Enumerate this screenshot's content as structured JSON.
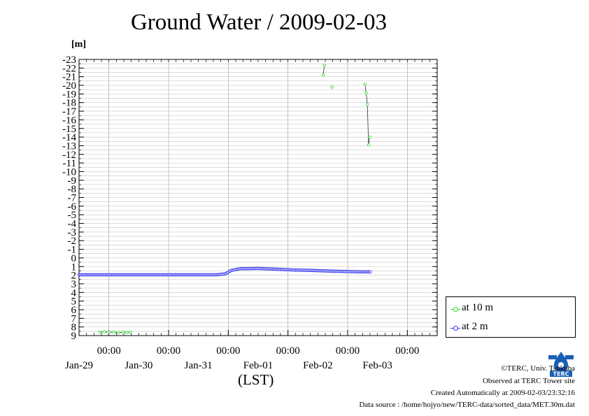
{
  "title": "Ground Water / 2009-02-03",
  "unit_label": "[m]",
  "axis_caption": "(LST)",
  "legend": [
    {
      "label": "at 10 m",
      "color": "#33dd33"
    },
    {
      "label": "at 2 m",
      "color": "#3333ee"
    }
  ],
  "footer": {
    "copyright": "©TERC, Univ. Tsukuba",
    "observed": "Observed at TERC Tower site",
    "created": "Created Automatically at 2009-02-03/23:32:16",
    "source": "Data source : /home/hojyo/new/TERC-data/sorted_data/MET.30m.dat"
  },
  "logo_text": "TERC",
  "chart_data": {
    "type": "line",
    "title": "Ground Water / 2009-02-03",
    "ylabel": "[m]",
    "xlabel": "(LST)",
    "y_inverted": true,
    "ylim": [
      -23,
      9
    ],
    "xlim": [
      0,
      6
    ],
    "x_unit": "days from Jan-28 12:00",
    "grid": true,
    "legend_position": "bottom-right outside",
    "y_ticks": [
      "-23",
      "-22",
      "-21",
      "-20",
      "-19",
      "-18",
      "-17",
      "-16",
      "-15",
      "-14",
      "-13",
      "-12",
      "-11",
      "-10",
      "-9",
      "-8",
      "-7",
      "-6",
      "-5",
      "-4",
      "-3",
      "-2",
      "-1",
      "0",
      "1",
      "2",
      "3",
      "4",
      "5",
      "6",
      "7",
      "8",
      "9"
    ],
    "x_major_ticks": [
      {
        "label": "00:00",
        "date": "Jan-29"
      },
      {
        "label": "00:00",
        "date": "Jan-30"
      },
      {
        "label": "00:00",
        "date": "Jan-31"
      },
      {
        "label": "00:00",
        "date": "Feb-01"
      },
      {
        "label": "00:00",
        "date": "Feb-02"
      },
      {
        "label": "00:00",
        "date": "Feb-03"
      }
    ],
    "series": [
      {
        "name": "at 10 m",
        "color": "#33dd33",
        "segments": [
          {
            "x": [
              0.35,
              0.42,
              0.5,
              0.58,
              0.66,
              0.74,
              0.8,
              0.86
            ],
            "y": [
              8.6,
              8.55,
              8.62,
              8.58,
              8.65,
              8.6,
              8.63,
              8.6
            ]
          },
          {
            "x": [
              4.09,
              4.11
            ],
            "y": [
              -21.2,
              -22.3
            ]
          },
          {
            "x": [
              4.24
            ],
            "y": [
              -19.8
            ]
          },
          {
            "x": [
              4.79,
              4.81,
              4.83,
              4.85,
              4.87
            ],
            "y": [
              -20.1,
              -19.1,
              -17.8,
              -13.1,
              -14.0
            ]
          }
        ]
      },
      {
        "name": "at 2 m",
        "color": "#3333ee",
        "x": [
          0.0,
          0.5,
          1.0,
          1.5,
          2.0,
          2.3,
          2.45,
          2.55,
          2.7,
          3.0,
          3.3,
          3.6,
          3.9,
          4.2,
          4.5,
          4.8,
          4.88
        ],
        "y": [
          1.95,
          1.95,
          1.95,
          1.95,
          1.95,
          1.95,
          1.85,
          1.45,
          1.25,
          1.22,
          1.3,
          1.4,
          1.45,
          1.52,
          1.58,
          1.62,
          1.62
        ]
      }
    ]
  }
}
